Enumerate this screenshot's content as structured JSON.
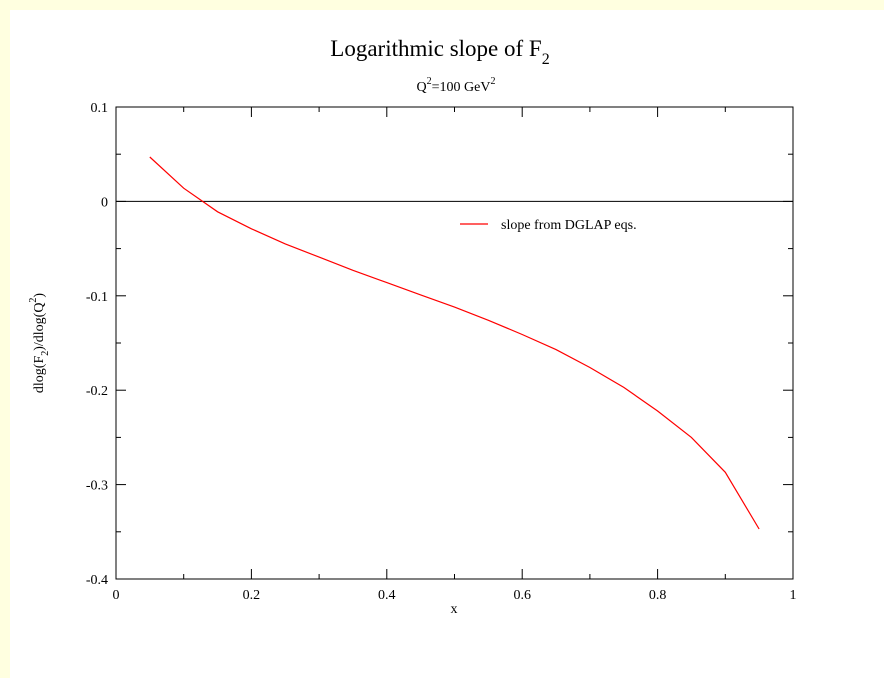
{
  "chart_data": {
    "type": "line",
    "title": "Logarithmic slope of F",
    "title_sub": "2",
    "subtitle": {
      "q": "Q",
      "q_sup": "2",
      "mid": "=100 GeV",
      "gev_sup": "2"
    },
    "xlabel": "x",
    "ylabel": {
      "p1": "dlog(F",
      "s1": "2",
      "p2": ")/dlog(Q",
      "s2": "2",
      "p3": ")"
    },
    "xlim": [
      0,
      1
    ],
    "ylim": [
      -0.4,
      0.1
    ],
    "x_ticks": [
      "0",
      "0.2",
      "0.4",
      "0.6",
      "0.8",
      "1"
    ],
    "y_ticks": [
      "0.1",
      "0",
      "-0.1",
      "-0.2",
      "-0.3",
      "-0.4"
    ],
    "zero_line": true,
    "grid": false,
    "legend_position": "top-right",
    "series": [
      {
        "name": "slope from DGLAP eqs.",
        "color": "#ff0000",
        "x": [
          0.05,
          0.1,
          0.15,
          0.2,
          0.25,
          0.3,
          0.35,
          0.4,
          0.45,
          0.5,
          0.55,
          0.6,
          0.65,
          0.7,
          0.75,
          0.8,
          0.85,
          0.9,
          0.95
        ],
        "y": [
          0.047,
          0.014,
          -0.011,
          -0.029,
          -0.045,
          -0.059,
          -0.073,
          -0.086,
          -0.099,
          -0.112,
          -0.126,
          -0.141,
          -0.157,
          -0.176,
          -0.197,
          -0.222,
          -0.25,
          -0.287,
          -0.347
        ]
      }
    ]
  }
}
